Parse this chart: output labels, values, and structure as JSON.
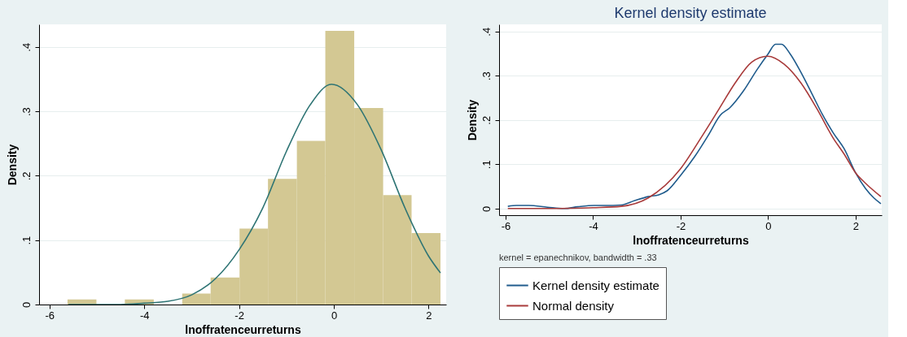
{
  "chart_data": [
    {
      "type": "histogram",
      "xlabel": "lnoffratenceurreturns",
      "ylabel": "Density",
      "bins": [
        -5.62,
        -5.01,
        -4.41,
        -3.8,
        -3.2,
        -2.6,
        -1.99,
        -1.39,
        -0.78,
        -0.18,
        0.43,
        1.04,
        1.64,
        2.25
      ],
      "values": [
        0.008,
        0,
        0.008,
        0,
        0.017,
        0.042,
        0.118,
        0.195,
        0.254,
        0.425,
        0.305,
        0.17,
        0.111
      ],
      "color": "#d3c893",
      "series": [
        {
          "type": "line",
          "color": "#2e7474",
          "x": [
            -5.6,
            -5.0,
            -4.5,
            -4.0,
            -3.5,
            -3.0,
            -2.5,
            -2.0,
            -1.5,
            -1.0,
            -0.5,
            -0.05,
            0.5,
            1.0,
            1.5,
            2.0,
            2.25
          ],
          "values": [
            0.0,
            0.0,
            0.0,
            0.002,
            0.005,
            0.015,
            0.04,
            0.085,
            0.15,
            0.238,
            0.31,
            0.342,
            0.31,
            0.24,
            0.15,
            0.075,
            0.049
          ]
        }
      ],
      "xlim": [
        -6.22,
        2.37
      ],
      "ylim": [
        0,
        0.435
      ],
      "xticks": [
        -6,
        -4,
        -2,
        0,
        2
      ],
      "yticks": [
        0,
        {
          "value": 0.1,
          "label": ".1"
        },
        {
          "value": 0.2,
          "label": ".2"
        },
        {
          "value": 0.3,
          "label": ".3"
        },
        {
          "value": 0.4,
          "label": ".4"
        }
      ],
      "grid": "y",
      "legend": false
    },
    {
      "type": "line",
      "title": "Kernel density estimate",
      "xlabel": "lnoffratenceurreturns",
      "ylabel": "Density",
      "series": [
        {
          "name": "Kernel density estimate",
          "color": "#1f5b8c",
          "x": [
            -5.95,
            -5.75,
            -5.47,
            -5.04,
            -4.66,
            -4.35,
            -3.98,
            -3.73,
            -3.36,
            -3.05,
            -2.74,
            -2.5,
            -2.31,
            -2.0,
            -1.68,
            -1.37,
            -1.09,
            -0.87,
            -0.56,
            -0.25,
            0.0,
            0.17,
            0.31,
            0.5,
            0.75,
            1.0,
            1.24,
            1.49,
            1.74,
            2.0,
            2.23,
            2.42,
            2.58
          ],
          "values": [
            0.005,
            0.007,
            0.007,
            0.003,
            0.0,
            0.004,
            0.007,
            0.007,
            0.008,
            0.018,
            0.027,
            0.031,
            0.04,
            0.075,
            0.117,
            0.165,
            0.211,
            0.228,
            0.266,
            0.314,
            0.349,
            0.371,
            0.371,
            0.35,
            0.308,
            0.26,
            0.213,
            0.171,
            0.135,
            0.081,
            0.045,
            0.024,
            0.011
          ]
        },
        {
          "name": "Normal density",
          "color": "#a83a3a",
          "x": [
            -5.95,
            -5.0,
            -4.0,
            -3.36,
            -2.74,
            -2.0,
            -1.5,
            -1.12,
            -0.75,
            -0.37,
            -0.01,
            0.37,
            0.75,
            1.12,
            1.49,
            1.74,
            2.0,
            2.23,
            2.58
          ],
          "values": [
            0.0,
            0.0,
            0.002,
            0.005,
            0.024,
            0.09,
            0.165,
            0.225,
            0.284,
            0.331,
            0.344,
            0.326,
            0.284,
            0.225,
            0.159,
            0.123,
            0.081,
            0.057,
            0.027
          ]
        }
      ],
      "xlim": [
        -6.15,
        2.6
      ],
      "ylim": [
        -0.015,
        0.416
      ],
      "xticks": [
        -6,
        -4,
        -2,
        0,
        2
      ],
      "yticks": [
        0,
        {
          "value": 0.1,
          "label": ".1"
        },
        {
          "value": 0.2,
          "label": ".2"
        },
        {
          "value": 0.3,
          "label": ".3"
        },
        {
          "value": 0.4,
          "label": ".4"
        }
      ],
      "grid": "y",
      "legend": "bottom",
      "annotations": [
        "kernel = epanechnikov, bandwidth = .33"
      ]
    }
  ]
}
